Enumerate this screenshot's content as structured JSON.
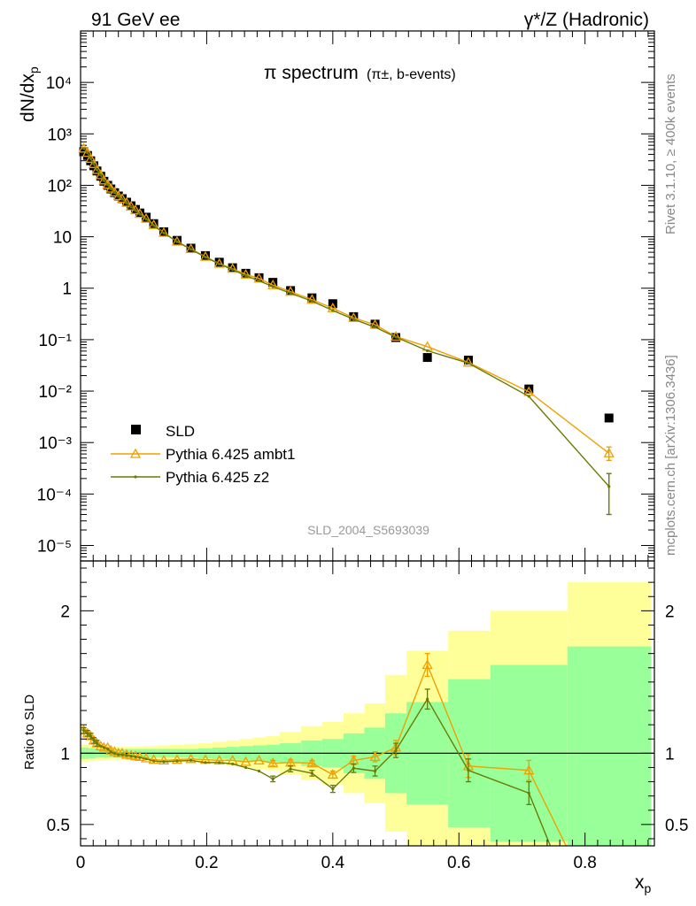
{
  "header": {
    "left": "91 GeV ee",
    "right": "γ*/Z (Hadronic)"
  },
  "side_labels": {
    "rivet": "Rivet 3.1.10, ≥ 400k events",
    "mcplots": "mcplots.cern.ch [arXiv:1306.3436]"
  },
  "watermark": "SLD_2004_S5693039",
  "colors": {
    "data": "#000000",
    "ambt1": "#f0a000",
    "z2": "#6b7a00",
    "band_inner": "#99ff99",
    "band_outer": "#ffff99"
  },
  "chart_data": [
    {
      "type": "scatter",
      "panel": "main",
      "title_main": "π spectrum",
      "title_sub": "(π±, b-events)",
      "ylabel": "dN/dx",
      "ylabel_sub": "p",
      "yscale": "log",
      "xlim": [
        0,
        0.91
      ],
      "ylim": [
        5e-06,
        100000.0
      ],
      "y_ticks": [
        "10⁻⁵",
        "10⁻⁴",
        "10⁻³",
        "10⁻²",
        "10⁻¹",
        "1",
        "10",
        "10²",
        "10³",
        "10⁴"
      ],
      "legend_position": "bottom-left",
      "series": [
        {
          "name": "SLD",
          "marker": "square",
          "x": [
            0.005,
            0.011,
            0.016,
            0.021,
            0.026,
            0.032,
            0.037,
            0.043,
            0.048,
            0.054,
            0.06,
            0.066,
            0.073,
            0.08,
            0.087,
            0.094,
            0.104,
            0.116,
            0.132,
            0.153,
            0.175,
            0.198,
            0.22,
            0.241,
            0.262,
            0.283,
            0.305,
            0.333,
            0.367,
            0.4,
            0.433,
            0.467,
            0.5,
            0.55,
            0.615,
            0.711,
            0.838
          ],
          "y": [
            450,
            380,
            300,
            240,
            190,
            150,
            120,
            100,
            85,
            72,
            62,
            55,
            47,
            40,
            34,
            29,
            24,
            18,
            12.5,
            8.5,
            6.0,
            4.3,
            3.2,
            2.5,
            1.95,
            1.6,
            1.3,
            0.9,
            0.65,
            0.5,
            0.28,
            0.2,
            0.11,
            0.045,
            0.04,
            0.011,
            0.003
          ]
        },
        {
          "name": "Pythia 6.425 ambt1",
          "marker": "triangle",
          "x": [
            0.005,
            0.011,
            0.016,
            0.021,
            0.026,
            0.032,
            0.037,
            0.043,
            0.048,
            0.054,
            0.06,
            0.066,
            0.073,
            0.08,
            0.087,
            0.094,
            0.104,
            0.116,
            0.132,
            0.153,
            0.175,
            0.198,
            0.22,
            0.241,
            0.262,
            0.283,
            0.305,
            0.333,
            0.367,
            0.4,
            0.433,
            0.467,
            0.5,
            0.55,
            0.615,
            0.711,
            0.838
          ],
          "y": [
            520,
            430,
            330,
            260,
            200,
            158,
            125,
            103,
            87,
            73,
            62,
            55,
            46,
            39,
            33,
            28,
            22.5,
            17,
            12,
            8.1,
            5.8,
            4.1,
            3.0,
            2.4,
            1.85,
            1.55,
            1.15,
            0.86,
            0.6,
            0.41,
            0.265,
            0.195,
            0.115,
            0.073,
            0.036,
            0.0097,
            0.00062
          ],
          "yerr_last": [
            0.00045,
            0.00082
          ]
        },
        {
          "name": "Pythia 6.425 z2",
          "marker": "dot",
          "x": [
            0.005,
            0.011,
            0.016,
            0.021,
            0.026,
            0.032,
            0.037,
            0.043,
            0.048,
            0.054,
            0.06,
            0.066,
            0.073,
            0.08,
            0.087,
            0.094,
            0.104,
            0.116,
            0.132,
            0.153,
            0.175,
            0.198,
            0.22,
            0.241,
            0.262,
            0.283,
            0.305,
            0.333,
            0.367,
            0.4,
            0.433,
            0.467,
            0.5,
            0.55,
            0.615,
            0.711,
            0.838
          ],
          "y": [
            520,
            430,
            330,
            260,
            200,
            158,
            124,
            102,
            86,
            72,
            61,
            54,
            45,
            38,
            32.5,
            27.5,
            22,
            16.5,
            11.8,
            8.0,
            5.7,
            4.0,
            2.95,
            2.3,
            1.75,
            1.4,
            1.07,
            0.8,
            0.56,
            0.37,
            0.25,
            0.175,
            0.112,
            0.061,
            0.035,
            0.0079,
            0.00014
          ],
          "yerr_last": [
            4e-05,
            0.00025
          ]
        }
      ]
    },
    {
      "type": "line",
      "panel": "ratio",
      "ylabel": "Ratio to SLD",
      "xlabel": "x",
      "xlabel_sub": "p",
      "xlim": [
        0,
        0.91
      ],
      "ylim": [
        0.35,
        2.35
      ],
      "x_ticks": [
        "0",
        "0.2",
        "0.4",
        "0.6",
        "0.8"
      ],
      "y_ticks": [
        "0.5",
        "1",
        "2"
      ],
      "bands": {
        "edges": [
          0.0,
          0.008,
          0.013,
          0.019,
          0.024,
          0.029,
          0.035,
          0.04,
          0.045,
          0.051,
          0.057,
          0.063,
          0.069,
          0.077,
          0.083,
          0.09,
          0.098,
          0.11,
          0.122,
          0.142,
          0.164,
          0.186,
          0.209,
          0.231,
          0.252,
          0.273,
          0.294,
          0.316,
          0.35,
          0.383,
          0.417,
          0.45,
          0.483,
          0.517,
          0.583,
          0.65,
          0.772,
          0.905
        ],
        "inner_half": [
          0.04,
          0.04,
          0.035,
          0.035,
          0.03,
          0.03,
          0.03,
          0.03,
          0.03,
          0.03,
          0.03,
          0.03,
          0.03,
          0.03,
          0.03,
          0.03,
          0.03,
          0.03,
          0.03,
          0.03,
          0.03,
          0.035,
          0.04,
          0.045,
          0.05,
          0.055,
          0.06,
          0.07,
          0.09,
          0.1,
          0.14,
          0.18,
          0.28,
          0.36,
          0.52,
          0.62,
          0.75
        ],
        "outer_half": [
          0.06,
          0.06,
          0.055,
          0.055,
          0.05,
          0.05,
          0.05,
          0.045,
          0.045,
          0.045,
          0.045,
          0.045,
          0.045,
          0.045,
          0.045,
          0.045,
          0.05,
          0.05,
          0.055,
          0.06,
          0.065,
          0.07,
          0.08,
          0.09,
          0.1,
          0.11,
          0.12,
          0.15,
          0.19,
          0.22,
          0.28,
          0.35,
          0.55,
          0.72,
          0.86,
          1.0,
          1.2
        ]
      },
      "series": [
        {
          "name": "Pythia 6.425 ambt1",
          "x": [
            0.005,
            0.011,
            0.016,
            0.021,
            0.026,
            0.032,
            0.037,
            0.043,
            0.048,
            0.054,
            0.06,
            0.066,
            0.073,
            0.08,
            0.087,
            0.094,
            0.104,
            0.116,
            0.132,
            0.153,
            0.175,
            0.198,
            0.22,
            0.241,
            0.262,
            0.283,
            0.305,
            0.333,
            0.367,
            0.4,
            0.433,
            0.467,
            0.5,
            0.55,
            0.615,
            0.711,
            0.77
          ],
          "y": [
            1.16,
            1.14,
            1.12,
            1.09,
            1.07,
            1.05,
            1.04,
            1.04,
            1.02,
            1.01,
            1.0,
            1.0,
            0.99,
            0.985,
            0.98,
            0.975,
            0.965,
            0.955,
            0.95,
            0.955,
            0.96,
            0.955,
            0.95,
            0.95,
            0.94,
            0.95,
            0.93,
            0.935,
            0.93,
            0.85,
            0.95,
            0.975,
            1.04,
            1.62,
            0.91,
            0.88,
            0.35
          ],
          "yerr": [
            0.02,
            0.02,
            0.02,
            0.02,
            0.02,
            0.015,
            0.015,
            0.015,
            0.015,
            0.015,
            0.015,
            0.015,
            0.015,
            0.015,
            0.015,
            0.015,
            0.015,
            0.015,
            0.015,
            0.015,
            0.015,
            0.015,
            0.015,
            0.015,
            0.015,
            0.015,
            0.02,
            0.02,
            0.02,
            0.025,
            0.03,
            0.035,
            0.05,
            0.08,
            0.08,
            0.07,
            0.0
          ]
        },
        {
          "name": "Pythia 6.425 z2",
          "x": [
            0.005,
            0.011,
            0.016,
            0.021,
            0.026,
            0.032,
            0.037,
            0.043,
            0.048,
            0.054,
            0.06,
            0.066,
            0.073,
            0.08,
            0.087,
            0.094,
            0.104,
            0.116,
            0.132,
            0.153,
            0.175,
            0.198,
            0.22,
            0.241,
            0.262,
            0.283,
            0.305,
            0.333,
            0.367,
            0.4,
            0.433,
            0.467,
            0.5,
            0.55,
            0.615,
            0.711,
            0.745
          ],
          "y": [
            1.16,
            1.14,
            1.12,
            1.09,
            1.07,
            1.05,
            1.04,
            1.03,
            1.01,
            1.0,
            0.99,
            0.99,
            0.985,
            0.98,
            0.975,
            0.97,
            0.96,
            0.945,
            0.94,
            0.945,
            0.95,
            0.935,
            0.935,
            0.925,
            0.9,
            0.875,
            0.82,
            0.89,
            0.86,
            0.75,
            0.895,
            0.875,
            1.02,
            1.38,
            0.88,
            0.72,
            0.35
          ],
          "yerr": [
            0.02,
            0.02,
            0.02,
            0.02,
            0.02,
            0.015,
            0.015,
            0.015,
            0.015,
            0.015,
            0.015,
            0.015,
            0.015,
            0.015,
            0.015,
            0.015,
            0.015,
            0.015,
            0.015,
            0.015,
            0.015,
            0.015,
            0.015,
            0.015,
            0.015,
            0.015,
            0.02,
            0.02,
            0.02,
            0.025,
            0.03,
            0.035,
            0.05,
            0.07,
            0.08,
            0.08,
            0.0
          ]
        }
      ]
    }
  ]
}
